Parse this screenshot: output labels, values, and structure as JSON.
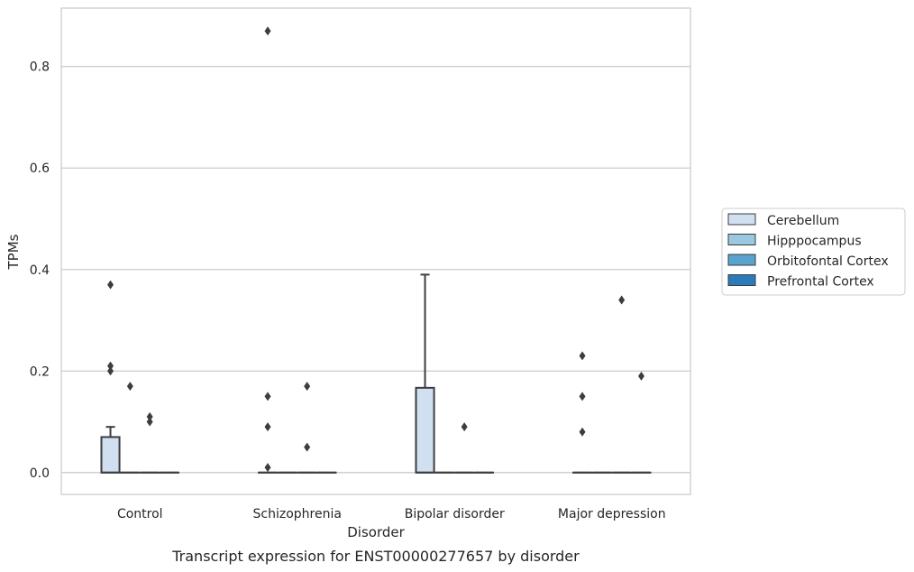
{
  "chart_data": {
    "type": "box",
    "caption": "Transcript expression for ENST00000277657 by disorder",
    "xlabel": "Disorder",
    "ylabel": "TPMs",
    "ylim": [
      -0.043,
      0.915
    ],
    "yticks": [
      0.0,
      0.2,
      0.4,
      0.6,
      0.8
    ],
    "ytick_labels": [
      "0.0",
      "0.2",
      "0.4",
      "0.6",
      "0.8"
    ],
    "categories": [
      "Control",
      "Schizophrenia",
      "Bipolar disorder",
      "Major depression"
    ],
    "grid": true,
    "legend_position": "right",
    "series": [
      {
        "name": "Cerebellum",
        "color": "#d1e0f1",
        "boxes": [
          {
            "q1": 0.0,
            "median": 0.0,
            "q3": 0.07,
            "whisker_low": 0.0,
            "whisker_high": 0.09,
            "outliers": [
              0.2,
              0.21,
              0.37
            ]
          },
          {
            "q1": 0.0,
            "median": 0.0,
            "q3": 0.0,
            "whisker_low": 0.0,
            "whisker_high": 0.0,
            "outliers": [
              0.01,
              0.09,
              0.15,
              0.87
            ]
          },
          {
            "q1": 0.0,
            "median": 0.0,
            "q3": 0.167,
            "whisker_low": 0.0,
            "whisker_high": 0.39,
            "outliers": []
          },
          {
            "q1": 0.0,
            "median": 0.0,
            "q3": 0.0,
            "whisker_low": 0.0,
            "whisker_high": 0.0,
            "outliers": [
              0.08,
              0.15,
              0.23
            ]
          }
        ]
      },
      {
        "name": "Hipppocampus",
        "color": "#9ac8e0",
        "boxes": [
          {
            "q1": 0.0,
            "median": 0.0,
            "q3": 0.0,
            "whisker_low": 0.0,
            "whisker_high": 0.0,
            "outliers": [
              0.17
            ]
          },
          {
            "q1": 0.0,
            "median": 0.0,
            "q3": 0.0,
            "whisker_low": 0.0,
            "whisker_high": 0.0,
            "outliers": []
          },
          {
            "q1": 0.0,
            "median": 0.0,
            "q3": 0.0,
            "whisker_low": 0.0,
            "whisker_high": 0.0,
            "outliers": []
          },
          {
            "q1": 0.0,
            "median": 0.0,
            "q3": 0.0,
            "whisker_low": 0.0,
            "whisker_high": 0.0,
            "outliers": []
          }
        ]
      },
      {
        "name": "Orbitofontal Cortex",
        "color": "#5ba3cf",
        "boxes": [
          {
            "q1": 0.0,
            "median": 0.0,
            "q3": 0.0,
            "whisker_low": 0.0,
            "whisker_high": 0.0,
            "outliers": [
              0.1,
              0.11
            ]
          },
          {
            "q1": 0.0,
            "median": 0.0,
            "q3": 0.0,
            "whisker_low": 0.0,
            "whisker_high": 0.0,
            "outliers": [
              0.05,
              0.17
            ]
          },
          {
            "q1": 0.0,
            "median": 0.0,
            "q3": 0.0,
            "whisker_low": 0.0,
            "whisker_high": 0.0,
            "outliers": [
              0.09
            ]
          },
          {
            "q1": 0.0,
            "median": 0.0,
            "q3": 0.0,
            "whisker_low": 0.0,
            "whisker_high": 0.0,
            "outliers": [
              0.34
            ]
          }
        ]
      },
      {
        "name": "Prefrontal Cortex",
        "color": "#2b7bba",
        "boxes": [
          {
            "q1": 0.0,
            "median": 0.0,
            "q3": 0.0,
            "whisker_low": 0.0,
            "whisker_high": 0.0,
            "outliers": []
          },
          {
            "q1": 0.0,
            "median": 0.0,
            "q3": 0.0,
            "whisker_low": 0.0,
            "whisker_high": 0.0,
            "outliers": []
          },
          {
            "q1": 0.0,
            "median": 0.0,
            "q3": 0.0,
            "whisker_low": 0.0,
            "whisker_high": 0.0,
            "outliers": []
          },
          {
            "q1": 0.0,
            "median": 0.0,
            "q3": 0.0,
            "whisker_low": 0.0,
            "whisker_high": 0.0,
            "outliers": [
              0.19
            ]
          }
        ]
      }
    ]
  }
}
